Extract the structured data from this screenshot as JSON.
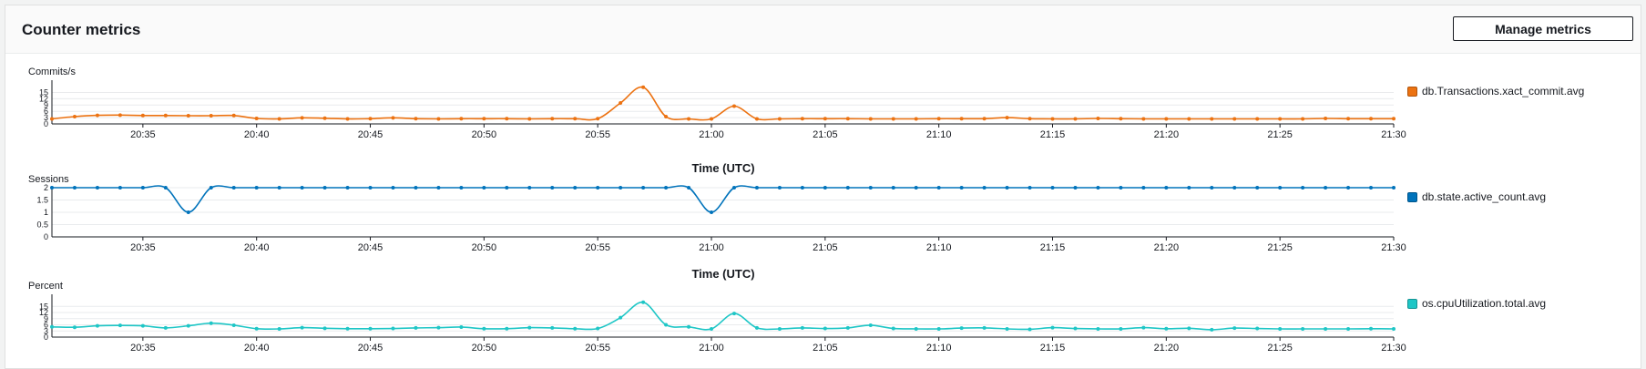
{
  "panel": {
    "title": "Counter metrics",
    "manage_label": "Manage metrics"
  },
  "chart_data": [
    {
      "type": "line",
      "ylabel": "Commits/s",
      "xlabel": "",
      "yticks": [
        0,
        3,
        6,
        9,
        12,
        15
      ],
      "ylim": [
        0,
        20
      ],
      "xticks": [
        "20:35",
        "20:40",
        "20:45",
        "20:50",
        "20:55",
        "21:00",
        "21:05",
        "21:10",
        "21:15",
        "21:20",
        "21:25",
        "21:30"
      ],
      "x_start": "20:31",
      "x_step_minutes": 1,
      "grid": true,
      "legend_position": "right",
      "series": [
        {
          "name": "db.Transactions.xact_commit.avg",
          "color": "#ec7211",
          "values": [
            2.4,
            3.5,
            4.1,
            4.2,
            4.0,
            4.0,
            3.9,
            3.9,
            4.0,
            2.6,
            2.4,
            2.9,
            2.7,
            2.4,
            2.5,
            2.9,
            2.5,
            2.4,
            2.5,
            2.5,
            2.5,
            2.4,
            2.5,
            2.5,
            2.5,
            10.0,
            17.5,
            3.5,
            2.4,
            2.4,
            8.5,
            2.4,
            2.4,
            2.5,
            2.5,
            2.5,
            2.4,
            2.4,
            2.4,
            2.5,
            2.5,
            2.5,
            3.0,
            2.5,
            2.4,
            2.4,
            2.6,
            2.5,
            2.4,
            2.4,
            2.4,
            2.4,
            2.4,
            2.4,
            2.4,
            2.4,
            2.6,
            2.5,
            2.5,
            2.5
          ]
        }
      ]
    },
    {
      "type": "line",
      "ylabel": "Sessions",
      "xlabel": "Time (UTC)",
      "yticks": [
        0,
        0.5,
        1,
        1.5,
        2
      ],
      "ylim": [
        0,
        2
      ],
      "xticks": [
        "20:35",
        "20:40",
        "20:45",
        "20:50",
        "20:55",
        "21:00",
        "21:05",
        "21:10",
        "21:15",
        "21:20",
        "21:25",
        "21:30"
      ],
      "x_start": "20:31",
      "x_step_minutes": 1,
      "grid": true,
      "legend_position": "right",
      "series": [
        {
          "name": "db.state.active_count.avg",
          "color": "#0073bb",
          "values": [
            2,
            2,
            2,
            2,
            2,
            2,
            1,
            2,
            2,
            2,
            2,
            2,
            2,
            2,
            2,
            2,
            2,
            2,
            2,
            2,
            2,
            2,
            2,
            2,
            2,
            2,
            2,
            2,
            2,
            1,
            2,
            2,
            2,
            2,
            2,
            2,
            2,
            2,
            2,
            2,
            2,
            2,
            2,
            2,
            2,
            2,
            2,
            2,
            2,
            2,
            2,
            2,
            2,
            2,
            2,
            2,
            2,
            2,
            2,
            2
          ]
        }
      ]
    },
    {
      "type": "line",
      "ylabel": "Percent",
      "xlabel": "Time (UTC)",
      "yticks": [
        0,
        3,
        6,
        9,
        12,
        15
      ],
      "ylim": [
        0,
        20
      ],
      "xticks": [
        "20:35",
        "20:40",
        "20:45",
        "20:50",
        "20:55",
        "21:00",
        "21:05",
        "21:10",
        "21:15",
        "21:20",
        "21:25",
        "21:30"
      ],
      "x_start": "20:31",
      "x_step_minutes": 1,
      "grid": true,
      "legend_position": "right",
      "series": [
        {
          "name": "os.cpuUtilization.total.avg",
          "color": "#1ec6c6",
          "values": [
            5.0,
            4.8,
            5.5,
            5.7,
            5.5,
            4.5,
            5.5,
            6.8,
            5.8,
            4.1,
            4.0,
            4.6,
            4.3,
            4.1,
            4.1,
            4.2,
            4.5,
            4.6,
            4.9,
            4.1,
            4.1,
            4.6,
            4.5,
            4.1,
            4.2,
            9.5,
            17.0,
            6.0,
            5.0,
            4.0,
            11.5,
            4.5,
            4.0,
            4.5,
            4.2,
            4.5,
            5.8,
            4.2,
            4.0,
            4.0,
            4.4,
            4.5,
            4.0,
            3.8,
            4.6,
            4.2,
            4.0,
            4.0,
            4.6,
            4.1,
            4.3,
            3.6,
            4.4,
            4.2,
            4.0,
            4.0,
            4.0,
            4.0,
            4.1,
            4.0
          ]
        }
      ]
    }
  ]
}
